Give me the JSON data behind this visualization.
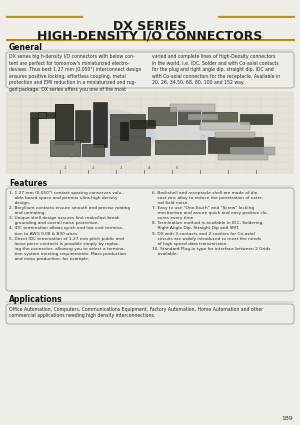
{
  "title_line1": "DX SERIES",
  "title_line2": "HIGH-DENSITY I/O CONNECTORS",
  "page_bg": "#f0ede8",
  "section_general_title": "General",
  "section_general_text_left": "DX series hig h-density I/O connectors with below con-\ntent are perfect for tomorrow's miniaturized electro-\ndevices. Thus best 1.27 mm (0.050\") interconnect design\nensures positive locking, effortless coupling, metal\nprotection and EMI reduction in a miniaturized and rug-\nged package. DX series offers you one of the most",
  "section_general_text_right": "varied and complete lines of High-Density connectors\nin the world, i.e. IDC, Solder and with Co-axial contacts\nfor the plug and right angle dip, straight dip, IDC and\nwith Co-axial connectors for the receptacle. Available in\n20, 26, 34,50, 68, 80, 100 and 152 way.",
  "features_title": "Features",
  "features_left": [
    "1.27 mm (0.050\") contact spacing conserves valu-\nable board space and permits ultra-high density\ndesign.",
    "Beryllium contacts ensure smooth and precise mating\nand unmating.",
    "Unique shell design assures first make/last break\ngrounding and overall noise protection.",
    "IDC termination allows quick and low cost termina-\ntion to AWG 0.08 & B30 wires.",
    "Direct IDC termination of 1.27 mm pitch public and\nloose piece contacts is possible simply by replac-\ning the connector, allowing you to select a termina-\ntion system meeting requirements. Mass production\nand mass production, for example."
  ],
  "features_right": [
    "Backshell and receptacle shell are made of die-\ncast zinc alloy to reduce the penetration of exter-\nnal field noise.",
    "Easy to use \"One-Touch\" and \"Screw\" locking\nmechanism and assure quick and easy positive clo-\nsures every time.",
    "Termination method is available in IDC, Soldering,\nRight Angle Dip, Straight Dip and SMT.",
    "DX with 3 contacts and 2 cavities for Co-axial\ncircuits are widely introduced to meet the needs\nof high speed data transmission.",
    "Standard Plug-in type for interface between 2 Grids\navailable."
  ],
  "applications_title": "Applications",
  "applications_text": "Office Automation, Computers, Communications Equipment, Factory Automation, Home Automation and other\ncommercial applications needing high density interconnections.",
  "page_number": "189",
  "title_color": "#1a1a1a",
  "text_color": "#2a2a2a",
  "box_border_color": "#888880",
  "section_title_color": "#111111",
  "header_line1_color": "#b8960a",
  "header_line2_color": "#555555"
}
